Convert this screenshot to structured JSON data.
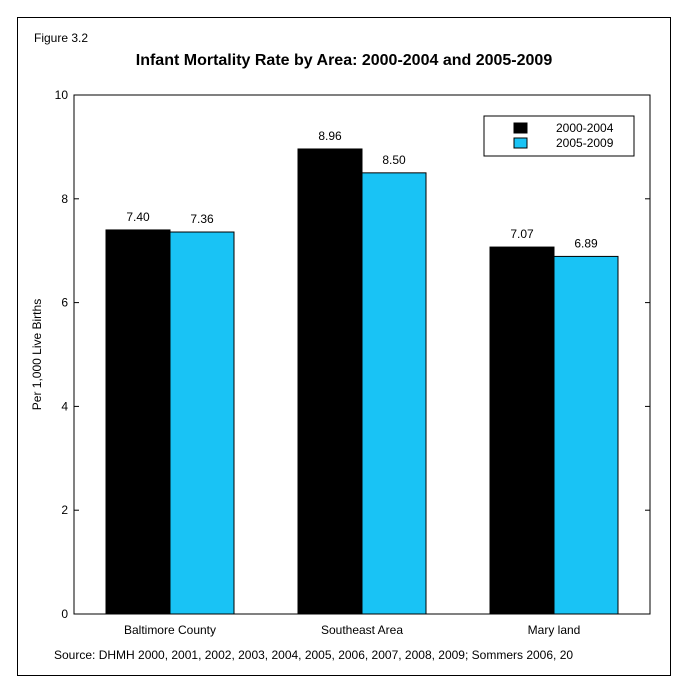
{
  "figure_label": "Figure 3.2",
  "source": "Source: DHMH 2000, 2001, 2002, 2003, 2004, 2005, 2006, 2007, 2008, 2009; Sommers 2006, 20",
  "colors": {
    "series_1": "#000000",
    "series_2": "#19c3f5"
  },
  "chart_data": {
    "type": "bar",
    "title": "Infant Mortality Rate by Area: 2000-2004 and 2005-2009",
    "xlabel": "",
    "ylabel": "Per 1,000 Live Births",
    "ylim": [
      0,
      10
    ],
    "yticks": [
      0,
      2,
      4,
      6,
      8,
      10
    ],
    "categories": [
      "Baltimore County",
      "Southeast Area",
      "Mary land"
    ],
    "series": [
      {
        "name": "2000-2004",
        "values": [
          7.4,
          8.96,
          7.07
        ],
        "labels": [
          "7.40",
          "8.96",
          "7.07"
        ]
      },
      {
        "name": "2005-2009",
        "values": [
          7.36,
          8.5,
          6.89
        ],
        "labels": [
          "7.36",
          "8.50",
          "6.89"
        ]
      }
    ],
    "legend": "top-right",
    "grid": false
  }
}
